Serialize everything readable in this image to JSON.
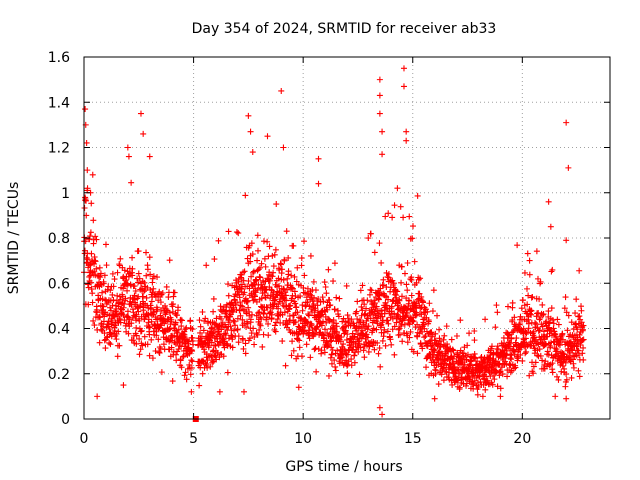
{
  "chart_data": {
    "type": "scatter",
    "title": "Day 354 of 2024, SRMTID for receiver ab33",
    "xlabel": "GPS time / hours",
    "ylabel": "SRMTID / TECUs",
    "xlim": [
      0,
      24
    ],
    "ylim": [
      0,
      1.6
    ],
    "xticks": [
      0,
      5,
      10,
      15,
      20
    ],
    "xtick_labels": [
      "0",
      "5",
      "10",
      "15",
      "20"
    ],
    "yticks": [
      0,
      0.2,
      0.4,
      0.6,
      0.8,
      1.0,
      1.2,
      1.4,
      1.6
    ],
    "ytick_labels": [
      "0",
      "0.2",
      "0.4",
      "0.6",
      "0.8",
      "1",
      "1.2",
      "1.4",
      "1.6"
    ],
    "grid": true,
    "marker": "+",
    "color": "#ff0000",
    "outlier_marker": {
      "x": 5.1,
      "y": 0.0,
      "shape": "square"
    },
    "series": [
      {
        "name": "SRMTID",
        "trend": [
          [
            0.0,
            0.8
          ],
          [
            0.5,
            0.62
          ],
          [
            1.0,
            0.45
          ],
          [
            2.0,
            0.52
          ],
          [
            3.0,
            0.48
          ],
          [
            4.0,
            0.4
          ],
          [
            5.0,
            0.28
          ],
          [
            6.0,
            0.35
          ],
          [
            7.0,
            0.48
          ],
          [
            8.0,
            0.55
          ],
          [
            9.0,
            0.55
          ],
          [
            10.0,
            0.45
          ],
          [
            11.0,
            0.4
          ],
          [
            12.0,
            0.32
          ],
          [
            13.0,
            0.42
          ],
          [
            14.0,
            0.5
          ],
          [
            15.0,
            0.5
          ],
          [
            16.0,
            0.28
          ],
          [
            17.0,
            0.22
          ],
          [
            18.0,
            0.2
          ],
          [
            19.0,
            0.26
          ],
          [
            20.0,
            0.4
          ],
          [
            21.0,
            0.36
          ],
          [
            22.0,
            0.28
          ],
          [
            22.8,
            0.38
          ]
        ],
        "spikes": [
          [
            0.05,
            1.37
          ],
          [
            0.08,
            1.3
          ],
          [
            0.12,
            1.22
          ],
          [
            0.15,
            1.1
          ],
          [
            0.3,
            1.0
          ],
          [
            2.0,
            1.2
          ],
          [
            2.05,
            1.16
          ],
          [
            2.6,
            1.35
          ],
          [
            2.7,
            1.26
          ],
          [
            3.0,
            1.16
          ],
          [
            7.5,
            1.34
          ],
          [
            7.6,
            1.27
          ],
          [
            7.7,
            1.18
          ],
          [
            9.0,
            1.45
          ],
          [
            9.1,
            1.2
          ],
          [
            10.7,
            1.15
          ],
          [
            10.7,
            1.04
          ],
          [
            13.5,
            1.5
          ],
          [
            13.5,
            1.43
          ],
          [
            13.5,
            1.35
          ],
          [
            13.6,
            1.27
          ],
          [
            13.6,
            1.17
          ],
          [
            14.3,
            1.02
          ],
          [
            14.6,
            1.55
          ],
          [
            14.6,
            1.47
          ],
          [
            14.7,
            1.27
          ],
          [
            14.7,
            1.23
          ],
          [
            21.2,
            0.96
          ],
          [
            21.3,
            0.85
          ],
          [
            22.0,
            1.31
          ],
          [
            22.1,
            1.11
          ],
          [
            22.0,
            0.79
          ]
        ],
        "lows": [
          [
            0.6,
            0.1
          ],
          [
            1.8,
            0.15
          ],
          [
            4.9,
            0.12
          ],
          [
            6.2,
            0.12
          ],
          [
            7.3,
            0.12
          ],
          [
            9.8,
            0.14
          ],
          [
            13.5,
            0.05
          ],
          [
            13.6,
            0.02
          ],
          [
            16.0,
            0.09
          ],
          [
            18.2,
            0.1
          ],
          [
            19.0,
            0.1
          ],
          [
            21.5,
            0.1
          ],
          [
            22.0,
            0.09
          ]
        ]
      }
    ]
  }
}
